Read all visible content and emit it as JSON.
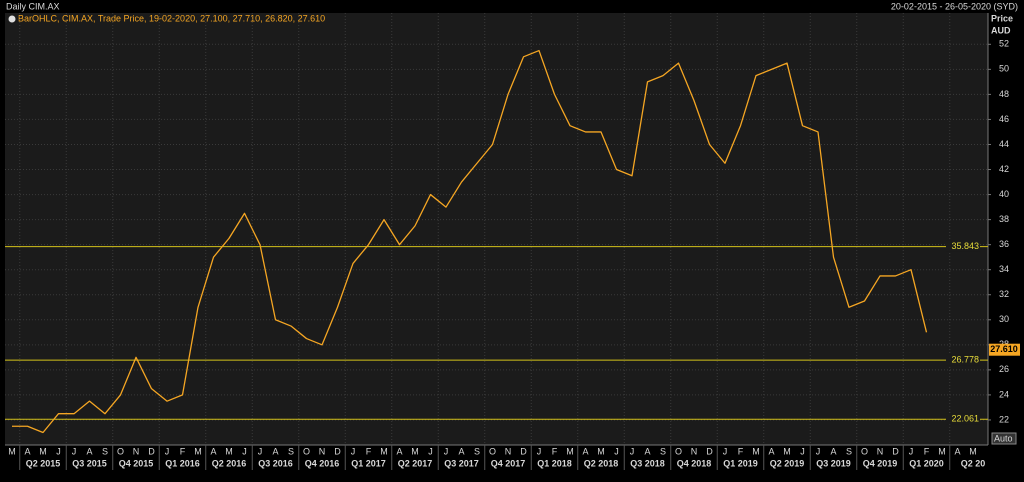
{
  "chart_data": {
    "type": "line",
    "title": "Daily CIM.AX",
    "date_range": "20-02-2015 - 26-05-2020 (SYD)",
    "legend_text": "BarOHLC, CIM.AX, Trade Price, 19-02-2020, 27.100, 27.710, 26.820, 27.610",
    "y_label_top": "Price",
    "y_label_bottom": "AUD",
    "auto_button": "Auto",
    "categories": [
      "M",
      "A",
      "M",
      "J",
      "J",
      "A",
      "S",
      "O",
      "N",
      "D",
      "J",
      "F",
      "M",
      "A",
      "M",
      "J",
      "J",
      "A",
      "S",
      "O",
      "N",
      "D",
      "J",
      "F",
      "M",
      "A",
      "M",
      "J",
      "J",
      "A",
      "S",
      "O",
      "N",
      "D",
      "J",
      "F",
      "M",
      "A",
      "M",
      "J",
      "J",
      "A",
      "S",
      "O",
      "N",
      "D",
      "J",
      "F",
      "M",
      "A",
      "M",
      "J",
      "J",
      "A",
      "S",
      "O",
      "N",
      "D",
      "J",
      "F",
      "M",
      "A",
      "M"
    ],
    "quarters": [
      "Q2 2015",
      "Q3 2015",
      "Q4 2015",
      "Q1 2016",
      "Q2 2016",
      "Q3 2016",
      "Q4 2016",
      "Q1 2017",
      "Q2 2017",
      "Q3 2017",
      "Q4 2017",
      "Q1 2018",
      "Q2 2018",
      "Q3 2018",
      "Q4 2018",
      "Q1 2019",
      "Q2 2019",
      "Q3 2019",
      "Q4 2019",
      "Q1 2020",
      "Q2 20"
    ],
    "series": [
      {
        "name": "CIM.AX",
        "color": "#f5a623",
        "values": [
          21.5,
          21.5,
          21,
          22.5,
          22.5,
          23.5,
          22.5,
          24,
          27,
          24.5,
          23.5,
          24,
          31,
          35,
          36.5,
          38.5,
          36,
          30,
          29.5,
          28.5,
          28,
          31,
          34.5,
          36,
          38,
          36,
          37.5,
          40,
          39,
          41,
          42.5,
          44,
          48,
          51,
          51.5,
          48,
          45.5,
          45,
          45,
          42,
          41.5,
          49,
          49.5,
          50.5,
          47.5,
          44,
          42.5,
          45.5,
          49.5,
          50,
          50.5,
          45.5,
          45,
          35,
          31,
          31.5,
          33.5,
          33.5,
          34,
          29,
          null,
          null,
          null
        ]
      }
    ],
    "levels": [
      35.843,
      26.778,
      22.061
    ],
    "last_price": {
      "value": 27.61,
      "label": "27.610"
    },
    "ylim": [
      20,
      54.5
    ],
    "yticks": [
      22,
      24,
      26,
      28,
      30,
      32,
      34,
      36,
      38,
      40,
      42,
      44,
      46,
      48,
      50,
      52
    ],
    "grid": true
  }
}
